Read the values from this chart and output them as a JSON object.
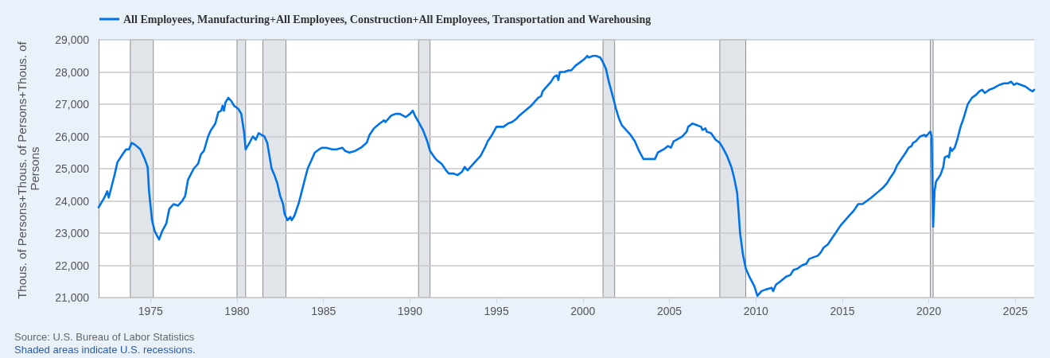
{
  "chart_data": {
    "type": "line",
    "ylabel": "Thous. of Persons+Thous. of Persons+Thous. of Persons",
    "annotations": [
      "Source: U.S. Bureau of Labor Statistics",
      "Shaded areas indicate U.S. recessions."
    ],
    "legend": "top left",
    "grid": "y",
    "marker": "none",
    "line_style": "solid",
    "xlim": [
      "1972-01",
      "2026-02"
    ],
    "xticks": [
      "1975",
      "1980",
      "1985",
      "1990",
      "1995",
      "2000",
      "2005",
      "2010",
      "2015",
      "2020",
      "2025"
    ],
    "ylim": [
      21000,
      29000
    ],
    "yticks": [
      {
        "value": 21000,
        "label": "21,000"
      },
      {
        "value": 22000,
        "label": "22,000"
      },
      {
        "value": 23000,
        "label": "23,000"
      },
      {
        "value": 24000,
        "label": "24,000"
      },
      {
        "value": 25000,
        "label": "25,000"
      },
      {
        "value": 26000,
        "label": "26,000"
      },
      {
        "value": 27000,
        "label": "27,000"
      },
      {
        "value": 28000,
        "label": "28,000"
      },
      {
        "value": 29000,
        "label": "29,000"
      }
    ],
    "bands": [
      {
        "axis": "x",
        "from": "1973-11",
        "to": "1975-03",
        "color": "#e1e5ea"
      },
      {
        "axis": "x",
        "from": "1980-01",
        "to": "1980-07",
        "color": "#e1e5ea"
      },
      {
        "axis": "x",
        "from": "1981-07",
        "to": "1982-11",
        "color": "#e1e5ea"
      },
      {
        "axis": "x",
        "from": "1990-07",
        "to": "1991-03",
        "color": "#e1e5ea"
      },
      {
        "axis": "x",
        "from": "2001-03",
        "to": "2001-11",
        "color": "#e1e5ea"
      },
      {
        "axis": "x",
        "from": "2007-12",
        "to": "2009-06",
        "color": "#e1e5ea"
      },
      {
        "axis": "x",
        "from": "2020-02",
        "to": "2020-04",
        "color": "#e1e5ea"
      }
    ],
    "x": [
      "1972-01",
      "1972-05",
      "1972-07",
      "1972-08",
      "1972-10",
      "1972-12",
      "1973-02",
      "1973-05",
      "1973-08",
      "1973-10",
      "1973-12",
      "1974-02",
      "1974-06",
      "1974-09",
      "1974-11",
      "1974-12",
      "1975-02",
      "1975-04",
      "1975-07",
      "1975-09",
      "1975-12",
      "1976-02",
      "1976-05",
      "1976-08",
      "1976-11",
      "1977-01",
      "1977-03",
      "1977-07",
      "1977-10",
      "1977-12",
      "1978-02",
      "1978-05",
      "1978-07",
      "1978-10",
      "1978-12",
      "1979-02",
      "1979-03",
      "1979-04",
      "1979-05",
      "1979-07",
      "1979-09",
      "1979-11",
      "1980-02",
      "1980-04",
      "1980-06",
      "1980-07",
      "1980-09",
      "1980-12",
      "1981-02",
      "1981-04",
      "1981-08",
      "1981-10",
      "1982-01",
      "1982-03",
      "1982-05",
      "1982-07",
      "1982-09",
      "1982-10",
      "1982-12",
      "1983-02",
      "1983-03",
      "1983-05",
      "1983-08",
      "1983-10",
      "1983-12",
      "1984-02",
      "1984-04",
      "1984-07",
      "1984-10",
      "1984-12",
      "1985-03",
      "1985-07",
      "1985-10",
      "1986-02",
      "1986-04",
      "1986-07",
      "1986-11",
      "1987-03",
      "1987-07",
      "1987-09",
      "1987-12",
      "1988-04",
      "1988-07",
      "1988-08",
      "1988-12",
      "1989-03",
      "1989-06",
      "1989-10",
      "1990-01",
      "1990-03",
      "1990-05",
      "1990-07",
      "1990-10",
      "1991-01",
      "1991-03",
      "1991-06",
      "1991-08",
      "1991-11",
      "1992-02",
      "1992-04",
      "1992-07",
      "1992-10",
      "1993-01",
      "1993-03",
      "1993-05",
      "1993-07",
      "1993-10",
      "1994-02",
      "1994-05",
      "1994-07",
      "1994-10",
      "1995-01",
      "1995-04",
      "1995-06",
      "1995-09",
      "1995-12",
      "1996-03",
      "1996-05",
      "1996-09",
      "1997-01",
      "1997-04",
      "1997-06",
      "1997-08",
      "1997-09",
      "1997-12",
      "1998-03",
      "1998-05",
      "1998-07",
      "1998-08",
      "1998-09",
      "1998-12",
      "1999-03",
      "1999-05",
      "1999-08",
      "1999-11",
      "2000-02",
      "2000-04",
      "2000-05",
      "2000-08",
      "2000-10",
      "2001-01",
      "2001-03",
      "2001-05",
      "2001-07",
      "2001-10",
      "2001-12",
      "2002-02",
      "2002-04",
      "2002-07",
      "2002-10",
      "2003-01",
      "2003-04",
      "2003-07",
      "2003-11",
      "2004-03",
      "2004-05",
      "2004-09",
      "2004-12",
      "2005-02",
      "2005-04",
      "2005-08",
      "2005-10",
      "2006-01",
      "2006-02",
      "2006-05",
      "2006-08",
      "2006-11",
      "2006-12",
      "2007-02",
      "2007-03",
      "2007-06",
      "2007-09",
      "2007-12",
      "2008-02",
      "2008-05",
      "2008-08",
      "2008-10",
      "2008-12",
      "2009-01",
      "2009-02",
      "2009-04",
      "2009-06",
      "2009-09",
      "2009-12",
      "2010-02",
      "2010-05",
      "2010-08",
      "2010-12",
      "2011-01",
      "2011-03",
      "2011-06",
      "2011-10",
      "2012-01",
      "2012-03",
      "2012-06",
      "2012-09",
      "2012-12",
      "2013-02",
      "2013-05",
      "2013-08",
      "2013-10",
      "2013-12",
      "2014-03",
      "2014-06",
      "2014-09",
      "2014-12",
      "2015-03",
      "2015-06",
      "2015-09",
      "2015-12",
      "2016-03",
      "2016-06",
      "2016-09",
      "2017-01",
      "2017-05",
      "2017-08",
      "2017-10",
      "2018-01",
      "2018-03",
      "2018-06",
      "2018-09",
      "2018-11",
      "2019-01",
      "2019-02",
      "2019-04",
      "2019-07",
      "2019-10",
      "2019-11",
      "2020-01",
      "2020-02",
      "2020-03",
      "2020-04",
      "2020-05",
      "2020-06",
      "2020-09",
      "2020-11",
      "2020-12",
      "2021-02",
      "2021-03",
      "2021-04",
      "2021-05",
      "2021-07",
      "2021-09",
      "2021-11",
      "2022-01",
      "2022-02",
      "2022-04",
      "2022-07",
      "2022-10",
      "2022-12",
      "2023-02",
      "2023-04",
      "2023-07",
      "2023-10",
      "2023-12",
      "2024-02",
      "2024-05",
      "2024-08",
      "2024-10",
      "2024-12",
      "2025-02",
      "2025-05",
      "2025-08",
      "2025-11",
      "2026-01",
      "2026-02"
    ],
    "series": [
      {
        "name": "All Employees, Manufacturing+All Employees, Construction+All Employees, Transportation and Warehousing",
        "color": "#0073e6",
        "values": [
          23800,
          24100,
          24300,
          24100,
          24450,
          24800,
          25200,
          25400,
          25600,
          25600,
          25800,
          25750,
          25600,
          25300,
          25050,
          24300,
          23400,
          23050,
          22800,
          23050,
          23300,
          23750,
          23900,
          23850,
          24000,
          24150,
          24650,
          25000,
          25150,
          25450,
          25550,
          26000,
          26200,
          26400,
          26750,
          26800,
          26950,
          26800,
          27050,
          27200,
          27100,
          26950,
          26850,
          26700,
          26100,
          25600,
          25750,
          26000,
          25900,
          26100,
          26000,
          25800,
          25000,
          24800,
          24550,
          24150,
          23900,
          23600,
          23400,
          23500,
          23400,
          23550,
          23950,
          24300,
          24650,
          25000,
          25200,
          25500,
          25600,
          25650,
          25650,
          25600,
          25600,
          25650,
          25550,
          25500,
          25550,
          25650,
          25800,
          26050,
          26250,
          26400,
          26500,
          26450,
          26650,
          26700,
          26700,
          26600,
          26700,
          26800,
          26600,
          26450,
          26200,
          25850,
          25550,
          25350,
          25250,
          25150,
          24950,
          24850,
          24850,
          24800,
          24900,
          25050,
          24950,
          25050,
          25200,
          25400,
          25650,
          25850,
          26050,
          26300,
          26300,
          26300,
          26400,
          26450,
          26550,
          26650,
          26800,
          26950,
          27100,
          27200,
          27250,
          27400,
          27550,
          27700,
          27850,
          27900,
          27750,
          28000,
          28000,
          28050,
          28050,
          28200,
          28300,
          28400,
          28500,
          28450,
          28500,
          28500,
          28450,
          28300,
          28100,
          27700,
          27200,
          26850,
          26550,
          26350,
          26200,
          26050,
          25850,
          25550,
          25300,
          25300,
          25300,
          25500,
          25600,
          25700,
          25650,
          25850,
          25950,
          26000,
          26150,
          26300,
          26400,
          26350,
          26300,
          26200,
          26250,
          26150,
          26100,
          25900,
          25800,
          25650,
          25400,
          25050,
          24700,
          24250,
          23650,
          23000,
          22350,
          21900,
          21600,
          21350,
          21050,
          21200,
          21250,
          21300,
          21200,
          21400,
          21500,
          21650,
          21700,
          21850,
          21900,
          22000,
          22050,
          22200,
          22250,
          22300,
          22400,
          22550,
          22650,
          22850,
          23050,
          23250,
          23400,
          23550,
          23700,
          23900,
          23900,
          24000,
          24100,
          24250,
          24400,
          24550,
          24700,
          24900,
          25100,
          25300,
          25500,
          25650,
          25700,
          25800,
          25850,
          26000,
          26050,
          26000,
          26100,
          26150,
          26000,
          23200,
          24300,
          24600,
          24800,
          25050,
          25350,
          25400,
          25350,
          25650,
          25550,
          25650,
          25950,
          26300,
          26550,
          26700,
          27000,
          27200,
          27300,
          27400,
          27450,
          27350,
          27450,
          27500,
          27550,
          27600,
          27650,
          27650,
          27700,
          27600,
          27650,
          27600,
          27550,
          27450,
          27400,
          27450
        ]
      }
    ]
  }
}
